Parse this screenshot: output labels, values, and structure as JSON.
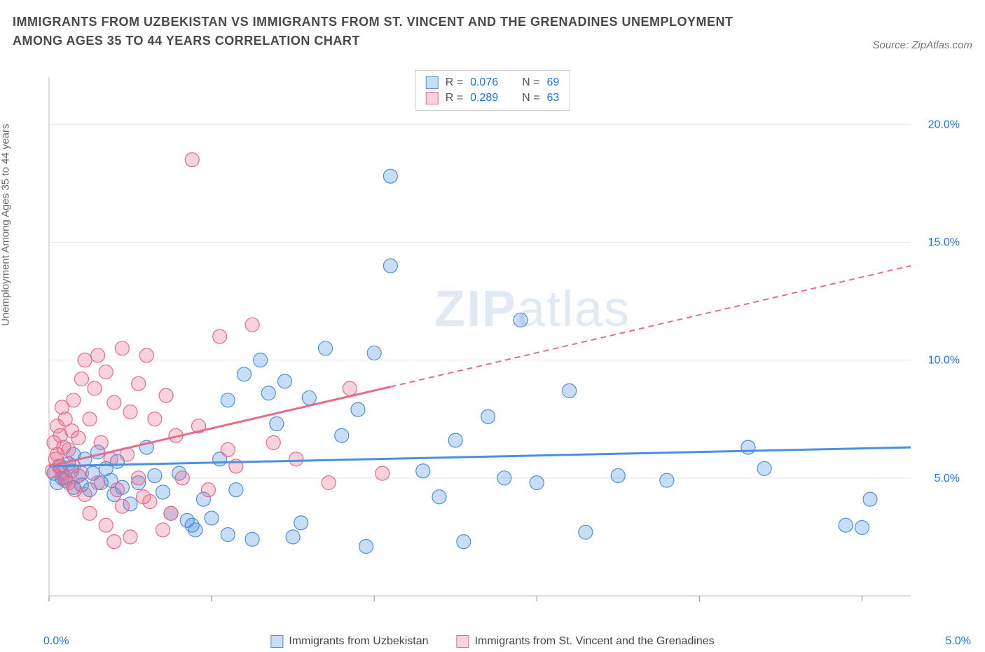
{
  "header": {
    "title": "IMMIGRANTS FROM UZBEKISTAN VS IMMIGRANTS FROM ST. VINCENT AND THE GRENADINES UNEMPLOYMENT AMONG AGES 35 TO 44 YEARS CORRELATION CHART",
    "source": "Source: ZipAtlas.com"
  },
  "watermark": {
    "zip": "ZIP",
    "atlas": "atlas"
  },
  "chart": {
    "type": "scatter",
    "y_axis": {
      "label": "Unemployment Among Ages 35 to 44 years",
      "min": 0,
      "max": 22,
      "ticks": [
        5,
        10,
        15,
        20
      ],
      "tick_labels": [
        "5.0%",
        "10.0%",
        "15.0%",
        "20.0%"
      ],
      "label_fontsize": 15,
      "tick_color": "#1a73e8"
    },
    "x_axis": {
      "min": 0,
      "max": 5.3,
      "ticks": [
        0,
        1,
        2,
        3,
        4,
        5
      ],
      "left_label": "0.0%",
      "right_label": "5.0%",
      "tick_color": "#1a73e8"
    },
    "grid_color": "#e5e5e5",
    "background_color": "#ffffff",
    "marker_radius": 10,
    "marker_fill_opacity": 0.35,
    "marker_stroke_width": 1.2,
    "series": [
      {
        "id": "uzbekistan",
        "label": "Immigrants from Uzbekistan",
        "color": "#4a90e2",
        "fill": "rgba(74,144,226,0.30)",
        "R": "0.076",
        "N": "69",
        "trend": {
          "y_intercept": 5.5,
          "y_at_xmax": 6.3,
          "solid_to_x": 5.3
        },
        "points": [
          [
            0.03,
            5.2
          ],
          [
            0.05,
            4.8
          ],
          [
            0.07,
            5.5
          ],
          [
            0.08,
            5.0
          ],
          [
            0.1,
            4.9
          ],
          [
            0.12,
            5.6
          ],
          [
            0.14,
            5.3
          ],
          [
            0.15,
            6.0
          ],
          [
            0.15,
            4.6
          ],
          [
            0.18,
            5.1
          ],
          [
            0.2,
            4.7
          ],
          [
            0.22,
            5.8
          ],
          [
            0.25,
            4.5
          ],
          [
            0.27,
            5.2
          ],
          [
            0.3,
            6.1
          ],
          [
            0.32,
            4.8
          ],
          [
            0.35,
            5.4
          ],
          [
            0.38,
            4.9
          ],
          [
            0.4,
            4.3
          ],
          [
            0.42,
            5.7
          ],
          [
            0.45,
            4.6
          ],
          [
            0.5,
            3.9
          ],
          [
            0.55,
            4.8
          ],
          [
            0.6,
            6.3
          ],
          [
            0.65,
            5.1
          ],
          [
            0.7,
            4.4
          ],
          [
            0.75,
            3.5
          ],
          [
            0.8,
            5.2
          ],
          [
            0.85,
            3.2
          ],
          [
            0.88,
            3.0
          ],
          [
            0.9,
            2.8
          ],
          [
            0.95,
            4.1
          ],
          [
            1.0,
            3.3
          ],
          [
            1.05,
            5.8
          ],
          [
            1.1,
            2.6
          ],
          [
            1.1,
            8.3
          ],
          [
            1.15,
            4.5
          ],
          [
            1.2,
            9.4
          ],
          [
            1.25,
            2.4
          ],
          [
            1.3,
            10.0
          ],
          [
            1.35,
            8.6
          ],
          [
            1.4,
            7.3
          ],
          [
            1.45,
            9.1
          ],
          [
            1.5,
            2.5
          ],
          [
            1.55,
            3.1
          ],
          [
            1.6,
            8.4
          ],
          [
            1.7,
            10.5
          ],
          [
            1.8,
            6.8
          ],
          [
            1.9,
            7.9
          ],
          [
            1.95,
            2.1
          ],
          [
            2.0,
            10.3
          ],
          [
            2.1,
            17.8
          ],
          [
            2.1,
            14.0
          ],
          [
            2.3,
            5.3
          ],
          [
            2.4,
            4.2
          ],
          [
            2.5,
            6.6
          ],
          [
            2.55,
            2.3
          ],
          [
            2.7,
            7.6
          ],
          [
            2.8,
            5.0
          ],
          [
            2.9,
            11.7
          ],
          [
            3.0,
            4.8
          ],
          [
            3.2,
            8.7
          ],
          [
            3.3,
            2.7
          ],
          [
            3.5,
            5.1
          ],
          [
            3.8,
            4.9
          ],
          [
            4.3,
            6.3
          ],
          [
            4.4,
            5.4
          ],
          [
            4.9,
            3.0
          ],
          [
            5.0,
            2.9
          ],
          [
            5.05,
            4.1
          ]
        ]
      },
      {
        "id": "stvincent",
        "label": "Immigrants from St. Vincent and the Grenadines",
        "color": "#e86b8a",
        "fill": "rgba(232,107,138,0.30)",
        "R": "0.289",
        "N": "63",
        "trend": {
          "y_intercept": 5.5,
          "y_at_xmax": 14.0,
          "solid_to_x": 2.1
        },
        "points": [
          [
            0.02,
            5.3
          ],
          [
            0.03,
            6.5
          ],
          [
            0.04,
            5.8
          ],
          [
            0.05,
            7.2
          ],
          [
            0.05,
            6.0
          ],
          [
            0.06,
            5.5
          ],
          [
            0.07,
            6.8
          ],
          [
            0.08,
            5.2
          ],
          [
            0.08,
            8.0
          ],
          [
            0.09,
            6.3
          ],
          [
            0.1,
            5.0
          ],
          [
            0.1,
            7.5
          ],
          [
            0.12,
            6.2
          ],
          [
            0.12,
            4.8
          ],
          [
            0.14,
            7.0
          ],
          [
            0.15,
            5.5
          ],
          [
            0.15,
            8.3
          ],
          [
            0.16,
            4.5
          ],
          [
            0.18,
            6.7
          ],
          [
            0.2,
            9.2
          ],
          [
            0.2,
            5.2
          ],
          [
            0.22,
            4.3
          ],
          [
            0.22,
            10.0
          ],
          [
            0.25,
            7.5
          ],
          [
            0.25,
            3.5
          ],
          [
            0.28,
            8.8
          ],
          [
            0.3,
            10.2
          ],
          [
            0.3,
            4.8
          ],
          [
            0.32,
            6.5
          ],
          [
            0.35,
            3.0
          ],
          [
            0.35,
            9.5
          ],
          [
            0.38,
            5.8
          ],
          [
            0.4,
            2.3
          ],
          [
            0.4,
            8.2
          ],
          [
            0.42,
            4.5
          ],
          [
            0.45,
            10.5
          ],
          [
            0.45,
            3.8
          ],
          [
            0.48,
            6.0
          ],
          [
            0.5,
            7.8
          ],
          [
            0.5,
            2.5
          ],
          [
            0.55,
            9.0
          ],
          [
            0.55,
            5.0
          ],
          [
            0.58,
            4.2
          ],
          [
            0.6,
            10.2
          ],
          [
            0.62,
            4.0
          ],
          [
            0.65,
            7.5
          ],
          [
            0.7,
            2.8
          ],
          [
            0.72,
            8.5
          ],
          [
            0.75,
            3.5
          ],
          [
            0.78,
            6.8
          ],
          [
            0.82,
            5.0
          ],
          [
            0.88,
            18.5
          ],
          [
            0.92,
            7.2
          ],
          [
            0.98,
            4.5
          ],
          [
            1.05,
            11.0
          ],
          [
            1.1,
            6.2
          ],
          [
            1.15,
            5.5
          ],
          [
            1.25,
            11.5
          ],
          [
            1.38,
            6.5
          ],
          [
            1.52,
            5.8
          ],
          [
            1.72,
            4.8
          ],
          [
            1.85,
            8.8
          ],
          [
            2.05,
            5.2
          ]
        ]
      }
    ]
  },
  "legend_top": {
    "r_label": "R =",
    "n_label": "N ="
  }
}
